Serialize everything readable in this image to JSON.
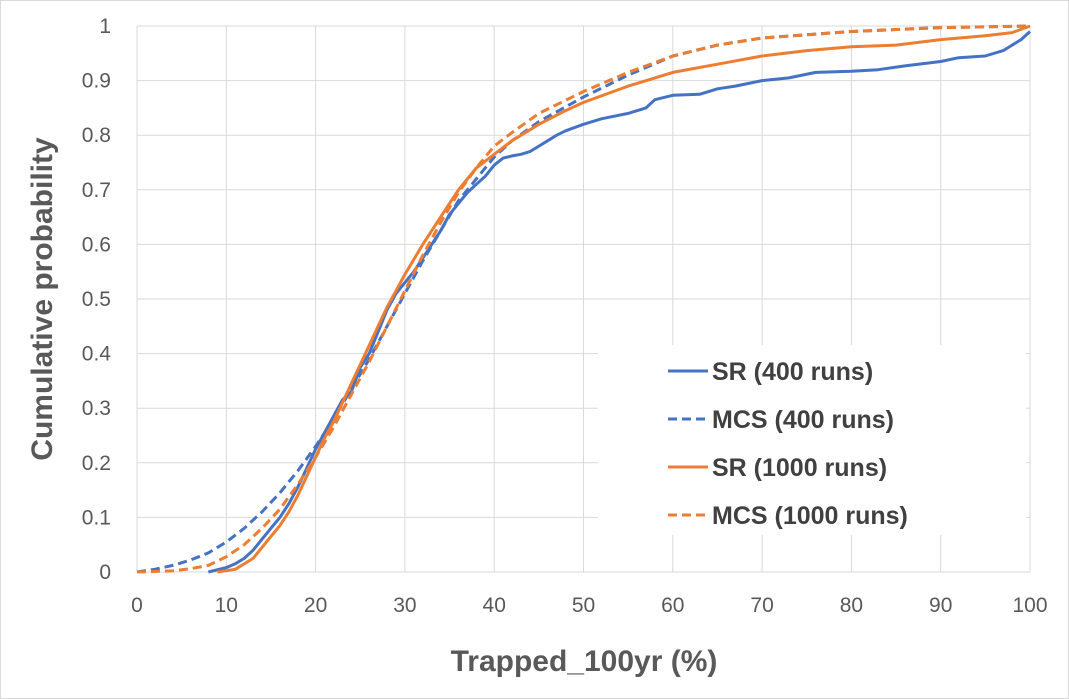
{
  "chart_data": {
    "type": "line",
    "title": "",
    "xlabel": "Trapped_100yr (%)",
    "ylabel": "Cumulative probability",
    "xlim": [
      0,
      100
    ],
    "ylim": [
      0,
      1
    ],
    "x_ticks": [
      "0",
      "10",
      "20",
      "30",
      "40",
      "50",
      "60",
      "70",
      "80",
      "90",
      "100"
    ],
    "y_ticks": [
      "0",
      "0.1",
      "0.2",
      "0.3",
      "0.4",
      "0.5",
      "0.6",
      "0.7",
      "0.8",
      "0.9",
      "1"
    ],
    "grid": true,
    "legend_position": "bottom-right",
    "series": [
      {
        "name": "SR (400 runs)",
        "color": "#4472C4",
        "dash": "solid",
        "points": [
          [
            8,
            0.0
          ],
          [
            10,
            0.008
          ],
          [
            11,
            0.015
          ],
          [
            12,
            0.025
          ],
          [
            13,
            0.04
          ],
          [
            14,
            0.06
          ],
          [
            15,
            0.08
          ],
          [
            16,
            0.1
          ],
          [
            17,
            0.125
          ],
          [
            18,
            0.155
          ],
          [
            19,
            0.19
          ],
          [
            20,
            0.225
          ],
          [
            21,
            0.255
          ],
          [
            22,
            0.285
          ],
          [
            23,
            0.315
          ],
          [
            24,
            0.33
          ],
          [
            25,
            0.375
          ],
          [
            26,
            0.4
          ],
          [
            27,
            0.44
          ],
          [
            28,
            0.48
          ],
          [
            29,
            0.51
          ],
          [
            30,
            0.53
          ],
          [
            31,
            0.55
          ],
          [
            32,
            0.575
          ],
          [
            33,
            0.6
          ],
          [
            34,
            0.625
          ],
          [
            35,
            0.655
          ],
          [
            36,
            0.675
          ],
          [
            37,
            0.695
          ],
          [
            38,
            0.71
          ],
          [
            39,
            0.725
          ],
          [
            40,
            0.745
          ],
          [
            41,
            0.758
          ],
          [
            42,
            0.762
          ],
          [
            43,
            0.765
          ],
          [
            44,
            0.77
          ],
          [
            45,
            0.78
          ],
          [
            46,
            0.79
          ],
          [
            47,
            0.8
          ],
          [
            48,
            0.808
          ],
          [
            50,
            0.82
          ],
          [
            52,
            0.83
          ],
          [
            55,
            0.84
          ],
          [
            57,
            0.85
          ],
          [
            58,
            0.865
          ],
          [
            60,
            0.873
          ],
          [
            63,
            0.875
          ],
          [
            65,
            0.885
          ],
          [
            67,
            0.89
          ],
          [
            70,
            0.9
          ],
          [
            73,
            0.905
          ],
          [
            76,
            0.915
          ],
          [
            80,
            0.917
          ],
          [
            83,
            0.92
          ],
          [
            86,
            0.927
          ],
          [
            90,
            0.935
          ],
          [
            92,
            0.942
          ],
          [
            95,
            0.945
          ],
          [
            97,
            0.955
          ],
          [
            99,
            0.975
          ],
          [
            100,
            0.99
          ]
        ]
      },
      {
        "name": "MCS (400 runs)",
        "color": "#4472C4",
        "dash": "dashed",
        "points": [
          [
            0,
            0.0
          ],
          [
            2,
            0.005
          ],
          [
            4,
            0.012
          ],
          [
            6,
            0.022
          ],
          [
            8,
            0.035
          ],
          [
            10,
            0.055
          ],
          [
            12,
            0.08
          ],
          [
            14,
            0.11
          ],
          [
            16,
            0.145
          ],
          [
            18,
            0.185
          ],
          [
            20,
            0.23
          ],
          [
            22,
            0.28
          ],
          [
            24,
            0.335
          ],
          [
            26,
            0.39
          ],
          [
            28,
            0.45
          ],
          [
            30,
            0.51
          ],
          [
            32,
            0.57
          ],
          [
            34,
            0.625
          ],
          [
            36,
            0.68
          ],
          [
            38,
            0.72
          ],
          [
            40,
            0.76
          ],
          [
            42,
            0.79
          ],
          [
            45,
            0.825
          ],
          [
            50,
            0.87
          ],
          [
            55,
            0.91
          ],
          [
            60,
            0.945
          ],
          [
            65,
            0.965
          ],
          [
            70,
            0.978
          ],
          [
            80,
            0.99
          ],
          [
            90,
            0.997
          ],
          [
            100,
            1.0
          ]
        ]
      },
      {
        "name": "SR (1000 runs)",
        "color": "#ED7D31",
        "dash": "solid",
        "points": [
          [
            9,
            0.0
          ],
          [
            11,
            0.005
          ],
          [
            12,
            0.015
          ],
          [
            13,
            0.025
          ],
          [
            14,
            0.045
          ],
          [
            15,
            0.065
          ],
          [
            16,
            0.085
          ],
          [
            17,
            0.11
          ],
          [
            18,
            0.14
          ],
          [
            19,
            0.175
          ],
          [
            20,
            0.21
          ],
          [
            21,
            0.245
          ],
          [
            22,
            0.275
          ],
          [
            23,
            0.31
          ],
          [
            24,
            0.345
          ],
          [
            25,
            0.38
          ],
          [
            26,
            0.415
          ],
          [
            27,
            0.45
          ],
          [
            28,
            0.485
          ],
          [
            29,
            0.515
          ],
          [
            30,
            0.545
          ],
          [
            32,
            0.6
          ],
          [
            34,
            0.65
          ],
          [
            36,
            0.7
          ],
          [
            38,
            0.74
          ],
          [
            40,
            0.765
          ],
          [
            42,
            0.79
          ],
          [
            45,
            0.82
          ],
          [
            48,
            0.845
          ],
          [
            50,
            0.86
          ],
          [
            55,
            0.89
          ],
          [
            60,
            0.915
          ],
          [
            65,
            0.93
          ],
          [
            70,
            0.945
          ],
          [
            75,
            0.955
          ],
          [
            80,
            0.962
          ],
          [
            85,
            0.965
          ],
          [
            90,
            0.975
          ],
          [
            95,
            0.982
          ],
          [
            98,
            0.988
          ],
          [
            100,
            1.0
          ]
        ]
      },
      {
        "name": "MCS (1000 runs)",
        "color": "#ED7D31",
        "dash": "dashed",
        "points": [
          [
            0,
            0.0
          ],
          [
            4,
            0.002
          ],
          [
            6,
            0.006
          ],
          [
            8,
            0.012
          ],
          [
            10,
            0.028
          ],
          [
            12,
            0.05
          ],
          [
            14,
            0.08
          ],
          [
            16,
            0.115
          ],
          [
            18,
            0.16
          ],
          [
            20,
            0.21
          ],
          [
            22,
            0.265
          ],
          [
            24,
            0.325
          ],
          [
            26,
            0.385
          ],
          [
            28,
            0.45
          ],
          [
            30,
            0.515
          ],
          [
            32,
            0.58
          ],
          [
            34,
            0.64
          ],
          [
            36,
            0.695
          ],
          [
            38,
            0.74
          ],
          [
            40,
            0.78
          ],
          [
            42,
            0.805
          ],
          [
            45,
            0.84
          ],
          [
            50,
            0.88
          ],
          [
            55,
            0.915
          ],
          [
            60,
            0.945
          ],
          [
            65,
            0.965
          ],
          [
            70,
            0.978
          ],
          [
            80,
            0.99
          ],
          [
            90,
            0.997
          ],
          [
            100,
            1.0
          ]
        ]
      }
    ]
  }
}
